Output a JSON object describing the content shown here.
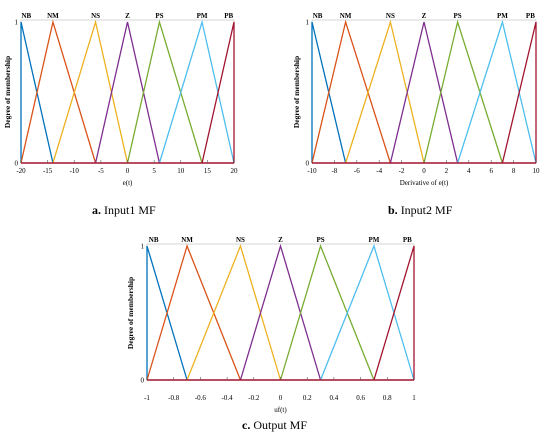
{
  "captions": {
    "a": {
      "letter": "a.",
      "text": "Input1 MF"
    },
    "b": {
      "letter": "b.",
      "text": "Input2 MF"
    },
    "c": {
      "letter": "c.",
      "text": "Output MF"
    }
  },
  "chart_data": [
    {
      "id": "a",
      "type": "line",
      "xlabel": "e(t)",
      "ylabel": "Degree of membership",
      "xlim": [
        -20,
        20
      ],
      "ylim": [
        0,
        1
      ],
      "xticks": [
        -20,
        -15,
        -10,
        -5,
        0,
        5,
        10,
        15,
        20
      ],
      "yticks": [
        0,
        1
      ],
      "series": [
        {
          "name": "NB",
          "x": [
            -20,
            -20,
            -14
          ],
          "y": [
            0,
            1,
            0
          ],
          "color": "#0072bd"
        },
        {
          "name": "NM",
          "x": [
            -20,
            -14,
            -6
          ],
          "y": [
            0,
            1,
            0
          ],
          "color": "#d95319"
        },
        {
          "name": "NS",
          "x": [
            -14,
            -6,
            0
          ],
          "y": [
            0,
            1,
            0
          ],
          "color": "#edb120"
        },
        {
          "name": "Z",
          "x": [
            -6,
            0,
            6
          ],
          "y": [
            0,
            1,
            0
          ],
          "color": "#7e2f8e"
        },
        {
          "name": "PS",
          "x": [
            0,
            6,
            14
          ],
          "y": [
            0,
            1,
            0
          ],
          "color": "#77ac30"
        },
        {
          "name": "PM",
          "x": [
            6,
            14,
            20
          ],
          "y": [
            0,
            1,
            0
          ],
          "color": "#4dbeee"
        },
        {
          "name": "PB",
          "x": [
            14,
            20,
            20
          ],
          "y": [
            0,
            1,
            0
          ],
          "color": "#a2142f"
        }
      ],
      "labels": [
        {
          "text": "NB",
          "x": -19
        },
        {
          "text": "NM",
          "x": -14
        },
        {
          "text": "NS",
          "x": -6
        },
        {
          "text": "Z",
          "x": 0
        },
        {
          "text": "PS",
          "x": 6
        },
        {
          "text": "PM",
          "x": 14
        },
        {
          "text": "PB",
          "x": 19
        }
      ]
    },
    {
      "id": "b",
      "type": "line",
      "xlabel": "Derivative of e(t)",
      "ylabel": "Degree of membership",
      "xlim": [
        -10,
        10
      ],
      "ylim": [
        0,
        1
      ],
      "xticks": [
        -10,
        -8,
        -6,
        -4,
        -2,
        0,
        2,
        4,
        6,
        8,
        10
      ],
      "yticks": [
        0,
        1
      ],
      "series": [
        {
          "name": "NB",
          "x": [
            -10,
            -10,
            -7
          ],
          "y": [
            0,
            1,
            0
          ],
          "color": "#0072bd"
        },
        {
          "name": "NM",
          "x": [
            -10,
            -7,
            -3
          ],
          "y": [
            0,
            1,
            0
          ],
          "color": "#d95319"
        },
        {
          "name": "NS",
          "x": [
            -7,
            -3,
            0
          ],
          "y": [
            0,
            1,
            0
          ],
          "color": "#edb120"
        },
        {
          "name": "Z",
          "x": [
            -3,
            0,
            3
          ],
          "y": [
            0,
            1,
            0
          ],
          "color": "#7e2f8e"
        },
        {
          "name": "PS",
          "x": [
            0,
            3,
            7
          ],
          "y": [
            0,
            1,
            0
          ],
          "color": "#77ac30"
        },
        {
          "name": "PM",
          "x": [
            3,
            7,
            10
          ],
          "y": [
            0,
            1,
            0
          ],
          "color": "#4dbeee"
        },
        {
          "name": "PB",
          "x": [
            7,
            10,
            10
          ],
          "y": [
            0,
            1,
            0
          ],
          "color": "#a2142f"
        }
      ],
      "labels": [
        {
          "text": "NB",
          "x": -9.5
        },
        {
          "text": "NM",
          "x": -7
        },
        {
          "text": "NS",
          "x": -3
        },
        {
          "text": "Z",
          "x": 0
        },
        {
          "text": "PS",
          "x": 3
        },
        {
          "text": "PM",
          "x": 7
        },
        {
          "text": "PB",
          "x": 9.5
        }
      ]
    },
    {
      "id": "c",
      "type": "line",
      "xlabel": "uf(t)",
      "ylabel": "Degree of membership",
      "xlim": [
        -1,
        1
      ],
      "ylim": [
        0,
        1
      ],
      "xticks": [
        -1,
        -0.8,
        -0.6,
        -0.4,
        -0.2,
        0,
        0.2,
        0.4,
        0.6,
        0.8,
        1
      ],
      "yticks": [
        0,
        1
      ],
      "series": [
        {
          "name": "NB",
          "x": [
            -1,
            -1,
            -0.7
          ],
          "y": [
            0,
            1,
            0
          ],
          "color": "#0072bd"
        },
        {
          "name": "NM",
          "x": [
            -1,
            -0.7,
            -0.3
          ],
          "y": [
            0,
            1,
            0
          ],
          "color": "#d95319"
        },
        {
          "name": "NS",
          "x": [
            -0.7,
            -0.3,
            0
          ],
          "y": [
            0,
            1,
            0
          ],
          "color": "#edb120"
        },
        {
          "name": "Z",
          "x": [
            -0.3,
            0,
            0.3
          ],
          "y": [
            0,
            1,
            0
          ],
          "color": "#7e2f8e"
        },
        {
          "name": "PS",
          "x": [
            0,
            0.3,
            0.7
          ],
          "y": [
            0,
            1,
            0
          ],
          "color": "#77ac30"
        },
        {
          "name": "PM",
          "x": [
            0.3,
            0.7,
            1
          ],
          "y": [
            0,
            1,
            0
          ],
          "color": "#4dbeee"
        },
        {
          "name": "PB",
          "x": [
            0.7,
            1,
            1
          ],
          "y": [
            0,
            1,
            0
          ],
          "color": "#a2142f"
        }
      ],
      "labels": [
        {
          "text": "NB",
          "x": -0.95
        },
        {
          "text": "NM",
          "x": -0.7
        },
        {
          "text": "NS",
          "x": -0.3
        },
        {
          "text": "Z",
          "x": 0
        },
        {
          "text": "PS",
          "x": 0.3
        },
        {
          "text": "PM",
          "x": 0.7
        },
        {
          "text": "PB",
          "x": 0.95
        }
      ]
    }
  ]
}
